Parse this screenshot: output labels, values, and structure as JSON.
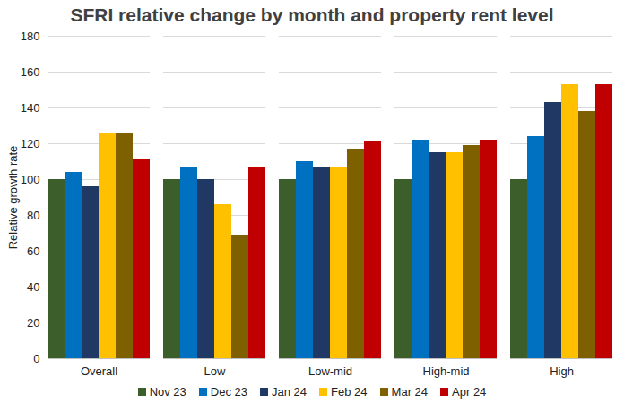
{
  "chart_data": {
    "type": "bar",
    "title": "SFRI relative change by month and property rent level",
    "y_label": "Relative growth rate",
    "categories": [
      "Overall",
      "Low",
      "Low-mid",
      "High-mid",
      "High"
    ],
    "series": [
      {
        "name": "Nov 23",
        "color": "#3b5e2b",
        "values": [
          100,
          100,
          100,
          100,
          100
        ]
      },
      {
        "name": "Dec 23",
        "color": "#0070c0",
        "values": [
          104,
          107,
          110,
          122,
          124
        ]
      },
      {
        "name": "Jan 24",
        "color": "#1f3864",
        "values": [
          96,
          100,
          107,
          115,
          143
        ]
      },
      {
        "name": "Feb 24",
        "color": "#ffc000",
        "values": [
          126,
          86,
          107,
          115,
          153
        ]
      },
      {
        "name": "Mar 24",
        "color": "#7f6000",
        "values": [
          126,
          69,
          117,
          119,
          138
        ]
      },
      {
        "name": "Apr 24",
        "color": "#c00000",
        "values": [
          111,
          107,
          121,
          122,
          153
        ]
      }
    ],
    "ylim": [
      0,
      180
    ],
    "yticks": [
      0,
      20,
      40,
      60,
      80,
      100,
      120,
      140,
      160,
      180
    ],
    "grid": true,
    "legend": "bottom"
  }
}
